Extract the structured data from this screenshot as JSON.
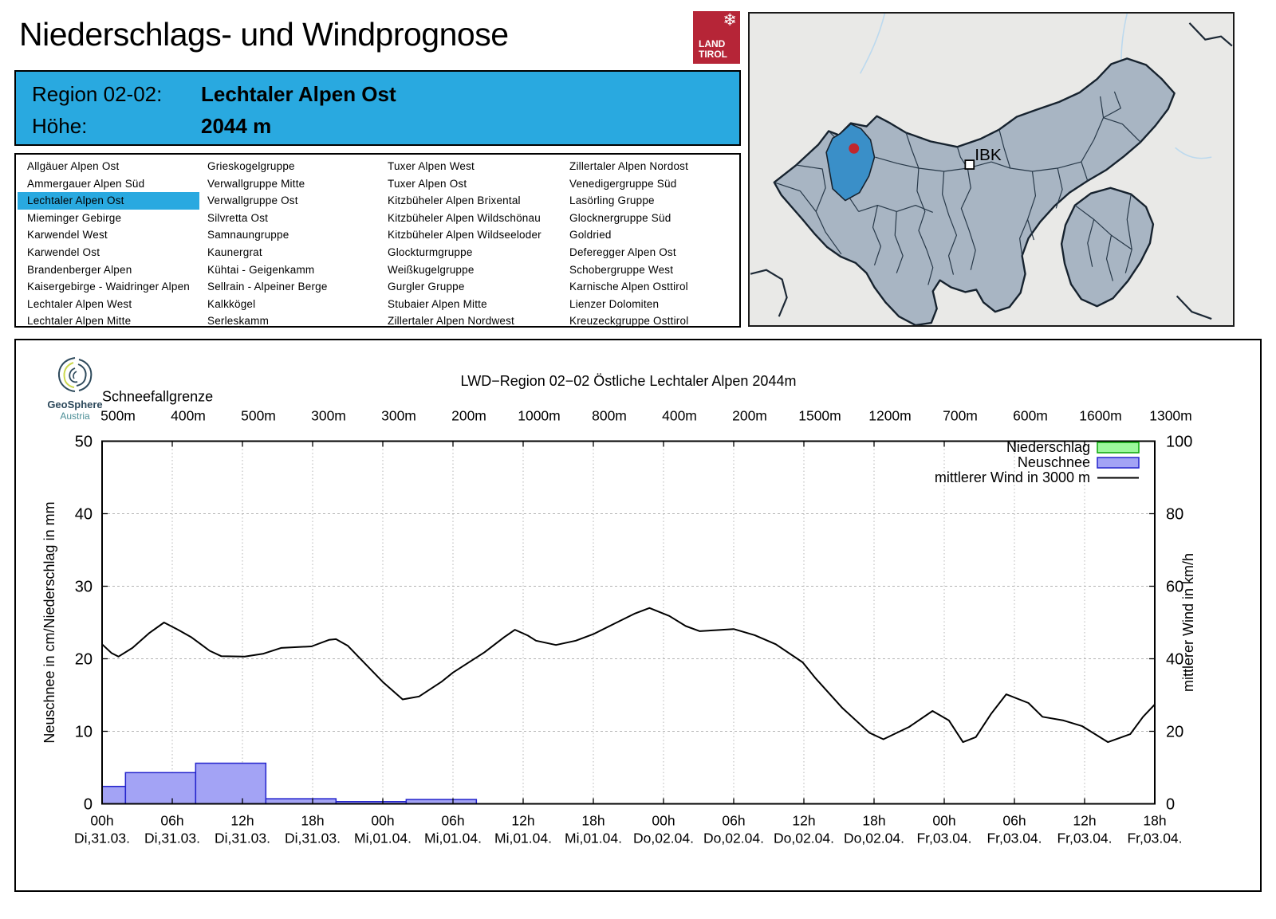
{
  "header": {
    "title": "Niederschlags- und Windprognose",
    "logo_line1": "LAND",
    "logo_line2": "TIROL"
  },
  "region_info": {
    "region_label": "Region 02-02:",
    "region_name": "Lechtaler Alpen Ost",
    "altitude_label": "Höhe:",
    "altitude_value": "2044 m"
  },
  "region_list": {
    "selected": "Lechtaler Alpen Ost",
    "columns": [
      [
        "Allgäuer Alpen Ost",
        "Ammergauer Alpen Süd",
        "Lechtaler Alpen Ost",
        "Mieminger Gebirge",
        "Karwendel West",
        "Karwendel Ost",
        "Brandenberger Alpen",
        "Kaisergebirge - Waidringer Alpen",
        "Lechtaler Alpen West",
        "Lechtaler Alpen Mitte"
      ],
      [
        "Grieskogelgruppe",
        "Verwallgruppe Mitte",
        "Verwallgruppe Ost",
        "Silvretta Ost",
        "Samnaungruppe",
        "Kaunergrat",
        "Kühtai - Geigenkamm",
        "Sellrain - Alpeiner Berge",
        "Kalkkögel",
        "Serleskamm"
      ],
      [
        "Tuxer Alpen West",
        "Tuxer Alpen Ost",
        "Kitzbüheler Alpen Brixental",
        "Kitzbüheler Alpen Wildschönau",
        "Kitzbüheler Alpen Wildseeloder",
        "Glockturmgruppe",
        "Weißkugelgruppe",
        "Gurgler Gruppe",
        "Stubaier Alpen Mitte",
        "Zillertaler Alpen Nordwest"
      ],
      [
        "Zillertaler Alpen Nordost",
        "Venedigergruppe Süd",
        "Lasörling Gruppe",
        "Glocknergruppe Süd",
        "Goldried",
        "Deferegger Alpen Ost",
        "Schobergruppe West",
        "Karnische Alpen Osttirol",
        "Lienzer Dolomiten",
        "Kreuzeckgruppe Osttirol"
      ]
    ]
  },
  "map": {
    "city_label": "IBK",
    "highlight_color": "#3a8fc8",
    "region_fill": "#a8b5c3",
    "marker_color": "#c1272d"
  },
  "branding": {
    "name": "GeoSphere",
    "country": "Austria"
  },
  "chart_data": {
    "type": "bar+line",
    "title": "LWD−Region 02−02 Östliche Lechtaler Alpen 2044m",
    "snowline_label": "Schneefallgrenze",
    "snowline_values": [
      "500m",
      "400m",
      "500m",
      "300m",
      "300m",
      "200m",
      "1000m",
      "800m",
      "400m",
      "200m",
      "1500m",
      "1200m",
      "700m",
      "600m",
      "1600m",
      "1300m"
    ],
    "ylabel_left": "Neuschnee in cm/Niederschlag in mm",
    "ylabel_right": "mittlerer Wind in km/h",
    "ylim_left": [
      0,
      50
    ],
    "ylim_right": [
      0,
      100
    ],
    "yticks_left": [
      0,
      10,
      20,
      30,
      40,
      50
    ],
    "yticks_right": [
      0,
      20,
      40,
      60,
      80,
      100
    ],
    "grid": true,
    "x_hours_total": 90,
    "x_ticks": [
      {
        "t": "00h",
        "d": "Di,31.03."
      },
      {
        "t": "06h",
        "d": "Di,31.03."
      },
      {
        "t": "12h",
        "d": "Di,31.03."
      },
      {
        "t": "18h",
        "d": "Di,31.03."
      },
      {
        "t": "00h",
        "d": "Mi,01.04."
      },
      {
        "t": "06h",
        "d": "Mi,01.04."
      },
      {
        "t": "12h",
        "d": "Mi,01.04."
      },
      {
        "t": "18h",
        "d": "Mi,01.04."
      },
      {
        "t": "00h",
        "d": "Do,02.04."
      },
      {
        "t": "06h",
        "d": "Do,02.04."
      },
      {
        "t": "12h",
        "d": "Do,02.04."
      },
      {
        "t": "18h",
        "d": "Do,02.04."
      },
      {
        "t": "00h",
        "d": "Fr,03.04."
      },
      {
        "t": "06h",
        "d": "Fr,03.04."
      },
      {
        "t": "12h",
        "d": "Fr,03.04."
      },
      {
        "t": "18h",
        "d": "Fr,03.04."
      }
    ],
    "legend": [
      {
        "label": "Niederschlag",
        "type": "box",
        "fill": "#9cf89c",
        "stroke": "#0aa50a"
      },
      {
        "label": "Neuschnee",
        "type": "box",
        "fill": "#a3a3f5",
        "stroke": "#2424cc"
      },
      {
        "label": "mittlerer Wind in 3000 m",
        "type": "line",
        "stroke": "#000000"
      }
    ],
    "niederschlag_bars_mm": [],
    "neuschnee_bars_cm": [
      {
        "from_h": 0,
        "to_h": 2,
        "value": 2.4
      },
      {
        "from_h": 2,
        "to_h": 8,
        "value": 4.3
      },
      {
        "from_h": 8,
        "to_h": 14,
        "value": 5.6
      },
      {
        "from_h": 14,
        "to_h": 20,
        "value": 0.7
      },
      {
        "from_h": 20,
        "to_h": 26,
        "value": 0.3
      },
      {
        "from_h": 26,
        "to_h": 32,
        "value": 0.6
      }
    ],
    "wind_series_kmh": [
      [
        0,
        44
      ],
      [
        0.8,
        41.6
      ],
      [
        1.4,
        40.6
      ],
      [
        2.6,
        43
      ],
      [
        4,
        47
      ],
      [
        5.3,
        50
      ],
      [
        6.5,
        48
      ],
      [
        7.6,
        46
      ],
      [
        9.2,
        42.2
      ],
      [
        10.2,
        40.7
      ],
      [
        12.2,
        40.6
      ],
      [
        13.8,
        41.4
      ],
      [
        15.3,
        43
      ],
      [
        17.9,
        43.4
      ],
      [
        19.4,
        45.2
      ],
      [
        20,
        45.4
      ],
      [
        21,
        43.6
      ],
      [
        22.2,
        39.6
      ],
      [
        24,
        33.6
      ],
      [
        25.7,
        28.8
      ],
      [
        27.1,
        29.6
      ],
      [
        29,
        33.6
      ],
      [
        30,
        36.2
      ],
      [
        32.7,
        41.8
      ],
      [
        34.4,
        46
      ],
      [
        35.3,
        48
      ],
      [
        36.4,
        46.4
      ],
      [
        37.1,
        45
      ],
      [
        38.8,
        43.8
      ],
      [
        40.5,
        45
      ],
      [
        42,
        46.8
      ],
      [
        44,
        50
      ],
      [
        45.5,
        52.4
      ],
      [
        46.8,
        54
      ],
      [
        48.5,
        51.8
      ],
      [
        49.9,
        49
      ],
      [
        51.1,
        47.6
      ],
      [
        52.5,
        47.9
      ],
      [
        54,
        48.2
      ],
      [
        55.8,
        46.5
      ],
      [
        57.6,
        44
      ],
      [
        59.9,
        39
      ],
      [
        61,
        34.6
      ],
      [
        63.3,
        26.4
      ],
      [
        65.6,
        19.6
      ],
      [
        66.8,
        17.8
      ],
      [
        69,
        21.2
      ],
      [
        71,
        25.6
      ],
      [
        72.4,
        23
      ],
      [
        73.6,
        17
      ],
      [
        74.7,
        18.4
      ],
      [
        76,
        24.8
      ],
      [
        77.3,
        30.2
      ],
      [
        79.2,
        27.8
      ],
      [
        80.4,
        24
      ],
      [
        82.2,
        23
      ],
      [
        83.8,
        21.4
      ],
      [
        84.9,
        19.2
      ],
      [
        86,
        17
      ],
      [
        87.9,
        19.2
      ],
      [
        89,
        24
      ],
      [
        90,
        27.4
      ]
    ]
  }
}
